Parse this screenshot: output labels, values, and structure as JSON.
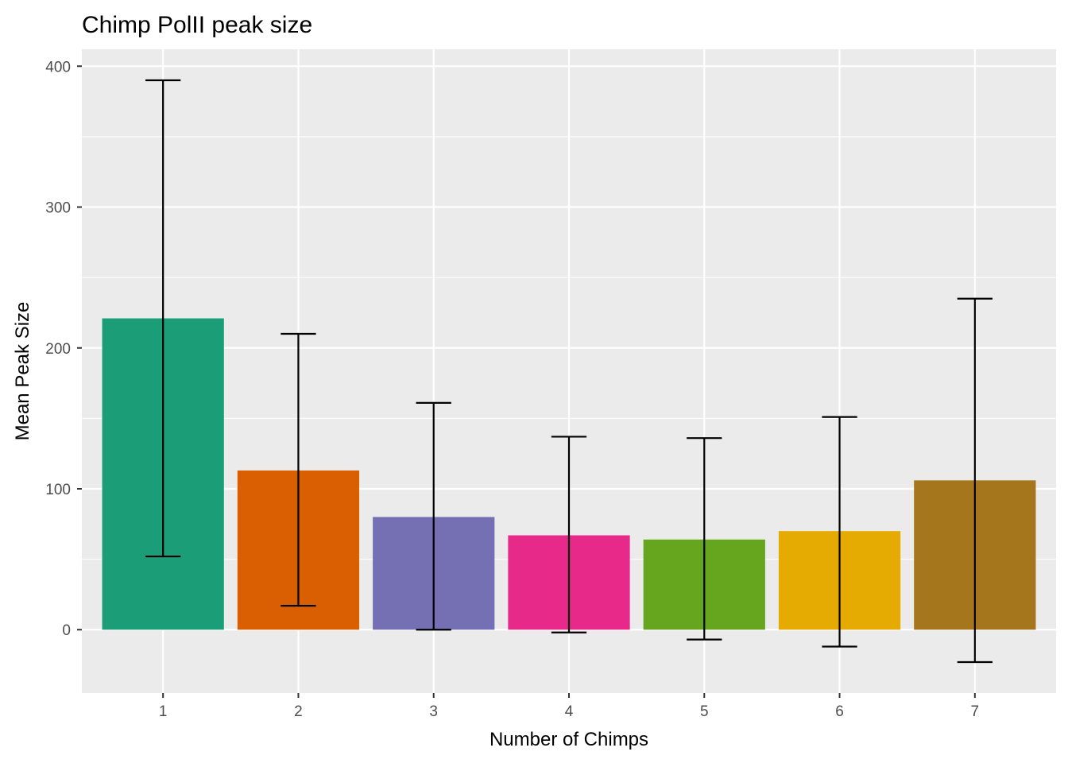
{
  "chart_data": {
    "type": "bar",
    "title": "Chimp PolII peak size",
    "xlabel": "Number of Chimps",
    "ylabel": "Mean Peak Size",
    "categories": [
      "1",
      "2",
      "3",
      "4",
      "5",
      "6",
      "7"
    ],
    "values": [
      221,
      113,
      80,
      67,
      64,
      70,
      106
    ],
    "error_bars": [
      {
        "low": 52,
        "high": 390
      },
      {
        "low": 17,
        "high": 210
      },
      {
        "low": 0,
        "high": 161
      },
      {
        "low": -2,
        "high": 137
      },
      {
        "low": -7,
        "high": 136
      },
      {
        "low": -12,
        "high": 151
      },
      {
        "low": -23,
        "high": 235
      }
    ],
    "colors": [
      "#1b9e77",
      "#d95f02",
      "#7570b3",
      "#e7298a",
      "#66a61e",
      "#e6ab02",
      "#a6761d"
    ],
    "yticks": [
      0,
      100,
      200,
      300,
      400
    ],
    "ylim": [
      -45,
      412
    ],
    "grid": true,
    "panel_background": "#ebebeb",
    "legend": "none"
  }
}
